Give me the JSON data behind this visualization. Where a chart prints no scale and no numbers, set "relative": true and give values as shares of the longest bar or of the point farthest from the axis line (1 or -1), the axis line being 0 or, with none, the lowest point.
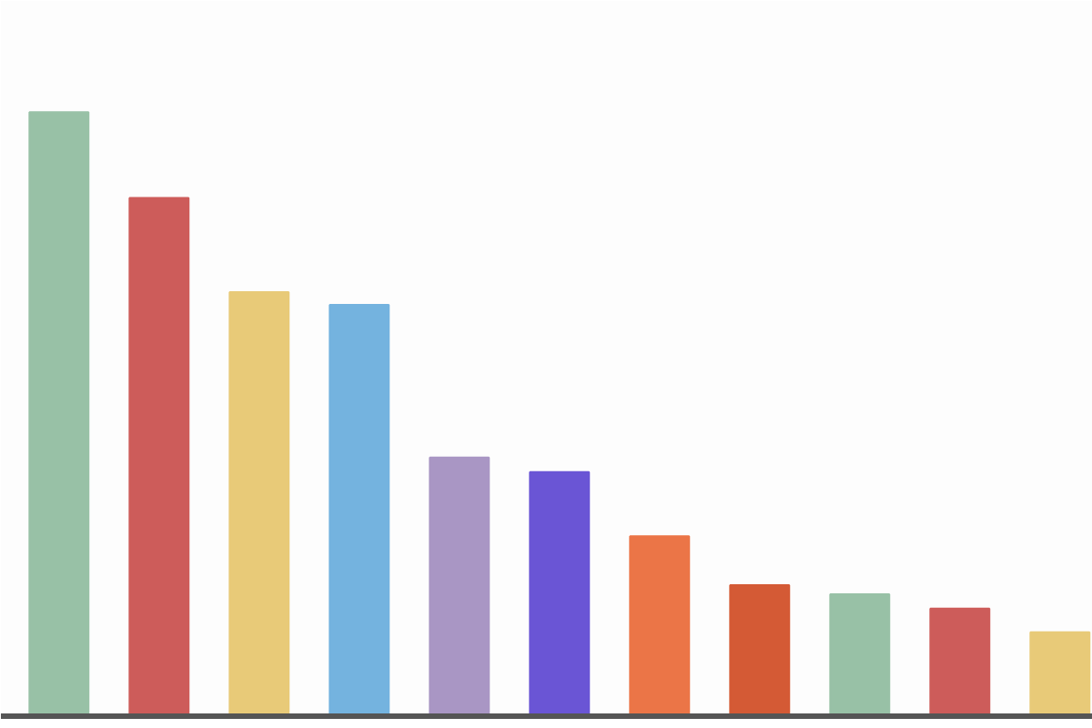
{
  "chart_data": {
    "type": "bar",
    "relative": true,
    "categories": [
      null,
      null,
      null,
      null,
      null,
      null,
      null,
      null,
      null,
      null,
      null
    ],
    "values": [
      1,
      0.858,
      0.702,
      0.681,
      0.428,
      0.404,
      0.298,
      0.217,
      0.202,
      0.178,
      0.139
    ],
    "colors": [
      "#98c1a6",
      "#cd5c5a",
      "#e8ca78",
      "#74b3df",
      "#a996c4",
      "#6a55d5",
      "#eb7547",
      "#d45a35",
      "#98c1a6",
      "#cd5c5a",
      "#e8ca78"
    ]
  }
}
